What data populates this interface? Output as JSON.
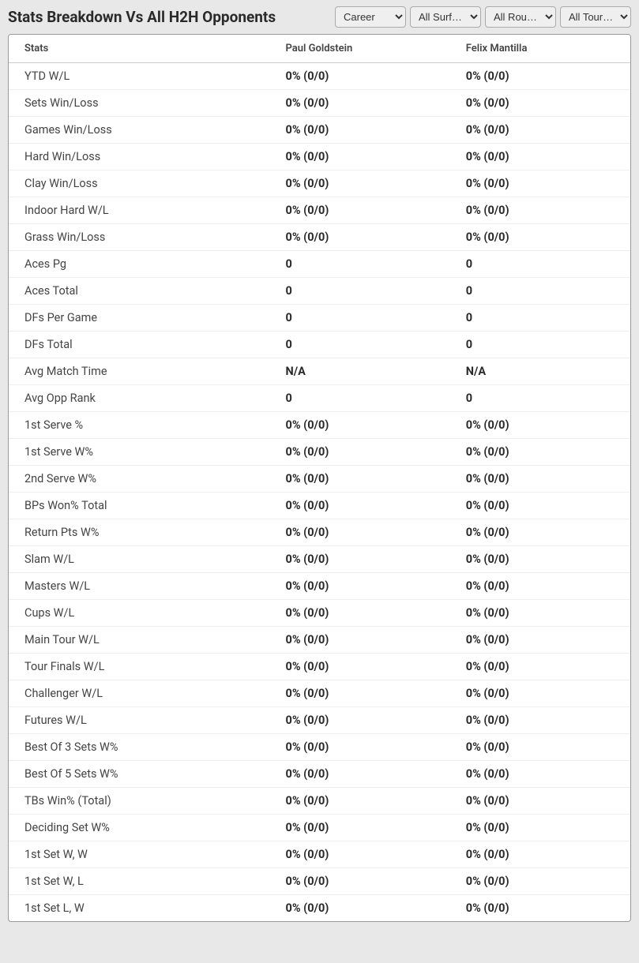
{
  "header": {
    "title": "Stats Breakdown Vs All H2H Opponents"
  },
  "filters": {
    "time": {
      "selected": "Career",
      "options": [
        "Career"
      ]
    },
    "surface": {
      "selected": "All Surf…",
      "options": [
        "All Surf…"
      ]
    },
    "round": {
      "selected": "All Rou…",
      "options": [
        "All Rou…"
      ]
    },
    "tournament": {
      "selected": "All Tour…",
      "options": [
        "All Tour…"
      ]
    }
  },
  "table": {
    "columns": [
      "Stats",
      "Paul Goldstein",
      "Felix Mantilla"
    ],
    "rows": [
      {
        "label": "YTD W/L",
        "p1": "0% (0/0)",
        "p2": "0% (0/0)"
      },
      {
        "label": "Sets Win/Loss",
        "p1": "0% (0/0)",
        "p2": "0% (0/0)"
      },
      {
        "label": "Games Win/Loss",
        "p1": "0% (0/0)",
        "p2": "0% (0/0)"
      },
      {
        "label": "Hard Win/Loss",
        "p1": "0% (0/0)",
        "p2": "0% (0/0)"
      },
      {
        "label": "Clay Win/Loss",
        "p1": "0% (0/0)",
        "p2": "0% (0/0)"
      },
      {
        "label": "Indoor Hard W/L",
        "p1": "0% (0/0)",
        "p2": "0% (0/0)"
      },
      {
        "label": "Grass Win/Loss",
        "p1": "0% (0/0)",
        "p2": "0% (0/0)"
      },
      {
        "label": "Aces Pg",
        "p1": "0",
        "p2": "0"
      },
      {
        "label": "Aces Total",
        "p1": "0",
        "p2": "0"
      },
      {
        "label": "DFs Per Game",
        "p1": "0",
        "p2": "0"
      },
      {
        "label": "DFs Total",
        "p1": "0",
        "p2": "0"
      },
      {
        "label": "Avg Match Time",
        "p1": "N/A",
        "p2": "N/A"
      },
      {
        "label": "Avg Opp Rank",
        "p1": "0",
        "p2": "0"
      },
      {
        "label": "1st Serve %",
        "p1": "0% (0/0)",
        "p2": "0% (0/0)"
      },
      {
        "label": "1st Serve W%",
        "p1": "0% (0/0)",
        "p2": "0% (0/0)"
      },
      {
        "label": "2nd Serve W%",
        "p1": "0% (0/0)",
        "p2": "0% (0/0)"
      },
      {
        "label": "BPs Won% Total",
        "p1": "0% (0/0)",
        "p2": "0% (0/0)"
      },
      {
        "label": "Return Pts W%",
        "p1": "0% (0/0)",
        "p2": "0% (0/0)"
      },
      {
        "label": "Slam W/L",
        "p1": "0% (0/0)",
        "p2": "0% (0/0)"
      },
      {
        "label": "Masters W/L",
        "p1": "0% (0/0)",
        "p2": "0% (0/0)"
      },
      {
        "label": "Cups W/L",
        "p1": "0% (0/0)",
        "p2": "0% (0/0)"
      },
      {
        "label": "Main Tour W/L",
        "p1": "0% (0/0)",
        "p2": "0% (0/0)"
      },
      {
        "label": "Tour Finals W/L",
        "p1": "0% (0/0)",
        "p2": "0% (0/0)"
      },
      {
        "label": "Challenger W/L",
        "p1": "0% (0/0)",
        "p2": "0% (0/0)"
      },
      {
        "label": "Futures W/L",
        "p1": "0% (0/0)",
        "p2": "0% (0/0)"
      },
      {
        "label": "Best Of 3 Sets W%",
        "p1": "0% (0/0)",
        "p2": "0% (0/0)"
      },
      {
        "label": "Best Of 5 Sets W%",
        "p1": "0% (0/0)",
        "p2": "0% (0/0)"
      },
      {
        "label": "TBs Win% (Total)",
        "p1": "0% (0/0)",
        "p2": "0% (0/0)"
      },
      {
        "label": "Deciding Set W%",
        "p1": "0% (0/0)",
        "p2": "0% (0/0)"
      },
      {
        "label": "1st Set W, W",
        "p1": "0% (0/0)",
        "p2": "0% (0/0)"
      },
      {
        "label": "1st Set W, L",
        "p1": "0% (0/0)",
        "p2": "0% (0/0)"
      },
      {
        "label": "1st Set L, W",
        "p1": "0% (0/0)",
        "p2": "0% (0/0)"
      }
    ]
  },
  "styling": {
    "background_color": "#e8e8e8",
    "table_bg": "#ffffff",
    "table_border": "#999999",
    "header_border": "#cccccc",
    "row_border": "#eeeeee",
    "title_color": "#2a2a2a",
    "label_color": "#444444",
    "value_color": "#2a2a2a",
    "title_fontsize": 19,
    "header_fontsize": 13,
    "cell_fontsize": 14.5
  }
}
